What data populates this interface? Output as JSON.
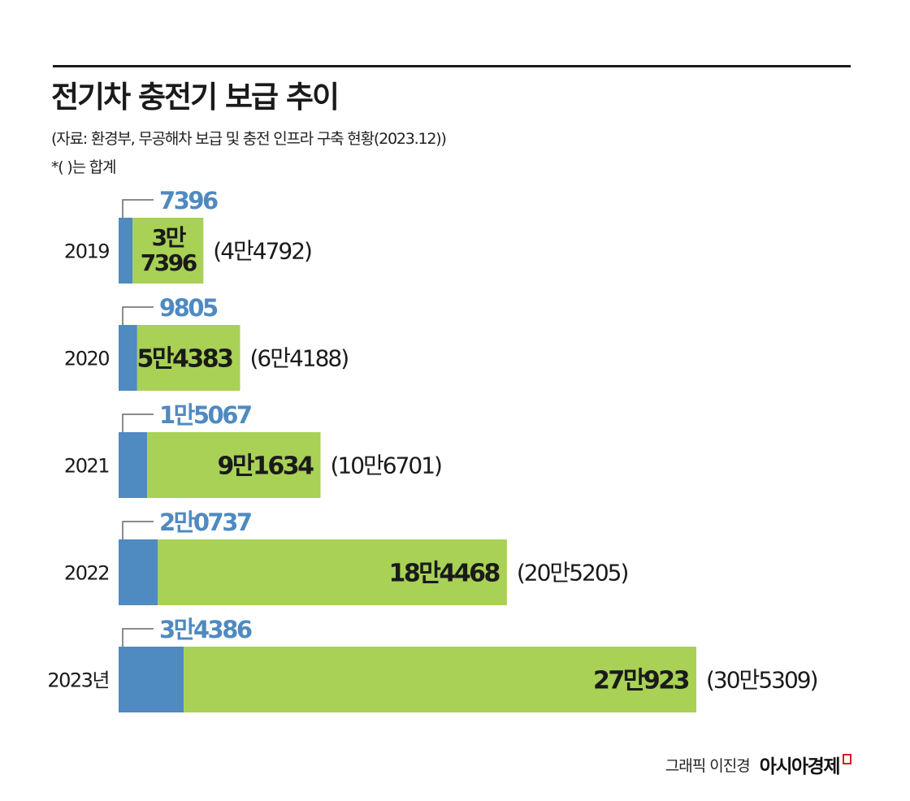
{
  "header": {
    "title": "전기차 충전기 보급 추이",
    "source": "(자료: 환경부, 무공해차 보급 및 충전 인프라 구축 현황(2023.12))",
    "note": "*(  )는 합계"
  },
  "footer": {
    "credit": "그래픽 이진경",
    "publisher": "아시아경제"
  },
  "colors": {
    "fast": "#4f8ac0",
    "slow": "#a8d155",
    "text": "#1a1a1a",
    "fast_label": "#4f8ac0"
  },
  "chart_data": {
    "type": "bar",
    "orientation": "horizontal",
    "stacked": true,
    "categories": [
      "2019",
      "2020",
      "2021",
      "2022",
      "2023년"
    ],
    "series": [
      {
        "values": [
          7396,
          9805,
          15067,
          20737,
          34386
        ],
        "labels": [
          "7396",
          "9805",
          "1만5067",
          "2만0737",
          "3만4386"
        ]
      },
      {
        "values": [
          37396,
          54383,
          91634,
          184468,
          270923
        ],
        "labels": [
          "3만\n7396",
          "5만4383",
          "9만1634",
          "18만4468",
          "27만923"
        ]
      }
    ],
    "totals": [
      44792,
      64188,
      106701,
      205205,
      305309
    ],
    "total_labels": [
      "(4만4792)",
      "(6만4188)",
      "(10만6701)",
      "(20만5205)",
      "(30만5309)"
    ]
  }
}
